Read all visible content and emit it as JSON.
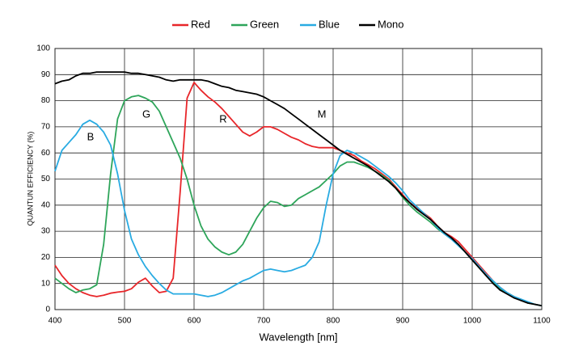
{
  "chart_data": {
    "type": "line",
    "xlabel": "Wavelength [nm]",
    "ylabel": "QUANTUN EFFICIENCY (%)",
    "annotations": [
      "B",
      "G",
      "R",
      "M"
    ],
    "x": [
      400,
      410,
      420,
      430,
      440,
      450,
      460,
      470,
      480,
      490,
      500,
      510,
      520,
      530,
      540,
      550,
      560,
      570,
      580,
      590,
      600,
      610,
      620,
      630,
      640,
      650,
      660,
      670,
      680,
      690,
      700,
      710,
      720,
      730,
      740,
      750,
      760,
      770,
      780,
      790,
      800,
      810,
      820,
      830,
      840,
      850,
      860,
      870,
      880,
      890,
      900,
      910,
      920,
      930,
      940,
      950,
      960,
      970,
      980,
      990,
      1000,
      1010,
      1020,
      1030,
      1040,
      1050,
      1060,
      1070,
      1080,
      1090,
      1100
    ],
    "series": [
      {
        "name": "Red",
        "color": "#e8262a",
        "values": [
          17,
          13,
          10,
          8,
          6.5,
          5.5,
          5,
          5.5,
          6.3,
          6.7,
          7,
          8,
          10.5,
          12,
          9,
          6.5,
          7,
          12,
          45,
          81,
          87,
          84,
          81.5,
          79.5,
          77,
          74,
          71,
          68,
          66.5,
          68,
          70,
          70,
          69,
          67.5,
          66,
          65,
          63.5,
          62.5,
          62,
          62,
          62,
          61,
          60,
          59,
          57,
          55.5,
          54,
          52,
          50,
          47,
          44,
          41,
          39,
          37,
          35,
          32,
          29.5,
          28,
          26,
          23,
          20,
          17,
          14,
          11,
          8.5,
          6.5,
          5,
          3.5,
          2.5,
          2,
          1.5
        ]
      },
      {
        "name": "Green",
        "color": "#2ea55a",
        "values": [
          12,
          10,
          8,
          6.5,
          7.5,
          8,
          9.5,
          25,
          52,
          73,
          80,
          81.5,
          82,
          81,
          79.5,
          76,
          70,
          64,
          58,
          50,
          40,
          32,
          27,
          24,
          22,
          21,
          22,
          25,
          30,
          35,
          39,
          41.5,
          41,
          39.5,
          40,
          42.5,
          44,
          45.5,
          47,
          49.5,
          52,
          55,
          56.5,
          56.5,
          55.5,
          54.5,
          53,
          51.5,
          49.5,
          46.5,
          43,
          40,
          37.5,
          35.5,
          33.5,
          31,
          29,
          27,
          25,
          22,
          19,
          16,
          13,
          10.5,
          8,
          6.5,
          5,
          3.5,
          2.5,
          2,
          1.5
        ]
      },
      {
        "name": "Blue",
        "color": "#29abe2",
        "values": [
          53,
          61,
          64,
          67,
          71,
          72.5,
          71,
          68,
          63,
          52,
          38,
          27,
          21,
          16.5,
          13,
          10,
          7.5,
          6,
          6,
          6,
          6,
          5.5,
          5,
          5.5,
          6.5,
          8,
          9.5,
          11,
          12,
          13.5,
          15,
          15.5,
          15,
          14.5,
          15,
          16,
          17,
          20,
          26,
          40,
          52,
          59,
          61,
          60,
          58.5,
          57,
          55,
          53,
          51,
          48.5,
          45.5,
          42,
          39.5,
          37,
          34.5,
          31.5,
          29,
          27,
          24.5,
          22,
          19.5,
          16.5,
          13.5,
          11,
          8.5,
          6.5,
          5,
          4,
          3,
          2,
          1.5
        ]
      },
      {
        "name": "Mono",
        "color": "#000000",
        "values": [
          86.5,
          87.5,
          88,
          89.5,
          90.5,
          90.5,
          91,
          91,
          91,
          91,
          91,
          90.5,
          90.5,
          90,
          89.5,
          89,
          88,
          87.5,
          88,
          88,
          88,
          88,
          87.5,
          86.5,
          85.5,
          85,
          84,
          83.5,
          83,
          82.5,
          81.5,
          80,
          78.5,
          77,
          75,
          73,
          71,
          69,
          67,
          65,
          63,
          61,
          59.5,
          58,
          56.5,
          55,
          53,
          51,
          49,
          46.5,
          43.5,
          41,
          38.5,
          36.5,
          34.5,
          32,
          29.5,
          27.5,
          25,
          22,
          19,
          16,
          13,
          10,
          7.5,
          6,
          4.5,
          3.5,
          2.5,
          2,
          1.5
        ]
      }
    ],
    "xlim": [
      400,
      1100
    ],
    "xticks": [
      400,
      500,
      600,
      700,
      800,
      900,
      1000,
      1100
    ],
    "ylim": [
      0,
      100
    ],
    "yticks": [
      0,
      10,
      20,
      30,
      40,
      50,
      60,
      70,
      80,
      90,
      100
    ],
    "grid": true
  }
}
